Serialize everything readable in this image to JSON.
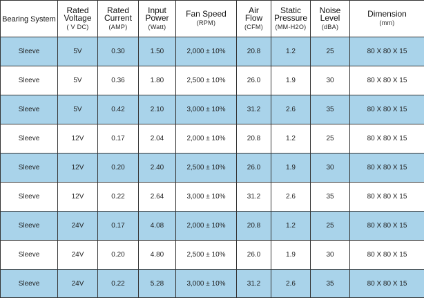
{
  "table": {
    "headers": [
      {
        "lines": [
          "Bearing System"
        ],
        "unit": ""
      },
      {
        "lines": [
          "Rated",
          "Voltage"
        ],
        "unit": "( V DC)"
      },
      {
        "lines": [
          "Rated",
          "Current"
        ],
        "unit": "(AMP)"
      },
      {
        "lines": [
          "Input",
          "Power"
        ],
        "unit": "(Watt)"
      },
      {
        "lines": [
          "Fan Speed"
        ],
        "unit": "(RPM)"
      },
      {
        "lines": [
          "Air",
          "Flow"
        ],
        "unit": "(CFM)"
      },
      {
        "lines": [
          "Static",
          "Pressure"
        ],
        "unit": "(MM-H2O)"
      },
      {
        "lines": [
          "Noise",
          "Level"
        ],
        "unit": "(dBA)"
      },
      {
        "lines": [
          "Dimension"
        ],
        "unit": "(mm)"
      }
    ],
    "rows": [
      [
        "Sleeve",
        "5V",
        "0.30",
        "1.50",
        "2,000 ± 10%",
        "20.8",
        "1.2",
        "25",
        "80 X 80 X 15"
      ],
      [
        "Sleeve",
        "5V",
        "0.36",
        "1.80",
        "2,500 ± 10%",
        "26.0",
        "1.9",
        "30",
        "80 X 80 X 15"
      ],
      [
        "Sleeve",
        "5V",
        "0.42",
        "2.10",
        "3,000 ± 10%",
        "31.2",
        "2.6",
        "35",
        "80 X 80 X 15"
      ],
      [
        "Sleeve",
        "12V",
        "0.17",
        "2.04",
        "2,000 ± 10%",
        "20.8",
        "1.2",
        "25",
        "80 X 80 X 15"
      ],
      [
        "Sleeve",
        "12V",
        "0.20",
        "2.40",
        "2,500 ± 10%",
        "26.0",
        "1.9",
        "30",
        "80 X 80 X 15"
      ],
      [
        "Sleeve",
        "12V",
        "0.22",
        "2.64",
        "3,000 ± 10%",
        "31.2",
        "2.6",
        "35",
        "80 X 80 X 15"
      ],
      [
        "Sleeve",
        "24V",
        "0.17",
        "4.08",
        "2,000 ± 10%",
        "20.8",
        "1.2",
        "25",
        "80 X 80 X 15"
      ],
      [
        "Sleeve",
        "24V",
        "0.20",
        "4.80",
        "2,500 ± 10%",
        "26.0",
        "1.9",
        "30",
        "80 X 80 X 15"
      ],
      [
        "Sleeve",
        "24V",
        "0.22",
        "5.28",
        "3,000 ± 10%",
        "31.2",
        "2.6",
        "35",
        "80 X 80 X 15"
      ]
    ]
  },
  "colors": {
    "shaded_row": "#a9d3ea",
    "plain_row": "#ffffff",
    "border": "#333333"
  }
}
